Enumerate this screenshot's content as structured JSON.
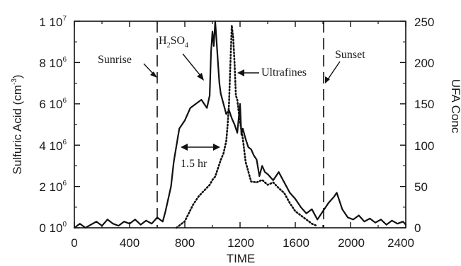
{
  "chart_data": {
    "type": "line",
    "title": "",
    "xlabel": "TIME",
    "ylabel_left": "Sulfuric Acid (cm",
    "ylabel_left_exp": "-3",
    "ylabel_left_close": ")",
    "ylabel_right": "UFA Conc",
    "xlim": [
      0,
      2400
    ],
    "ylim_left": [
      0,
      10000000
    ],
    "ylim_right": [
      0,
      250
    ],
    "grid": false,
    "x_ticks": [
      "0",
      "400",
      "800",
      "1200",
      "1600",
      "2000",
      "2400"
    ],
    "y_left_ticks": [
      {
        "mant": "0 10",
        "exp": "0",
        "value": 0
      },
      {
        "mant": "2 10",
        "exp": "6",
        "value": 2000000
      },
      {
        "mant": "4 10",
        "exp": "6",
        "value": 4000000
      },
      {
        "mant": "6 10",
        "exp": "6",
        "value": 6000000
      },
      {
        "mant": "8 10",
        "exp": "6",
        "value": 8000000
      },
      {
        "mant": "1 10",
        "exp": "7",
        "value": 10000000
      }
    ],
    "y_right_ticks": [
      "0",
      "50",
      "100",
      "150",
      "200",
      "250"
    ],
    "series": [
      {
        "axis": "left",
        "style": "solid",
        "x": [
          0,
          40,
          80,
          120,
          160,
          200,
          240,
          280,
          320,
          360,
          400,
          440,
          480,
          520,
          560,
          600,
          640,
          660,
          700,
          720,
          760,
          800,
          840,
          880,
          920,
          960,
          980,
          990,
          1000,
          1010,
          1020,
          1030,
          1040,
          1050,
          1060,
          1080,
          1100,
          1120,
          1140,
          1160,
          1180,
          1200,
          1210,
          1220,
          1240,
          1260,
          1280,
          1300,
          1320,
          1340,
          1360,
          1380,
          1400,
          1440,
          1480,
          1520,
          1560,
          1600,
          1640,
          1680,
          1720,
          1760,
          1800,
          1840,
          1880,
          1900,
          1940,
          1980,
          2020,
          2060,
          2100,
          2140,
          2180,
          2220,
          2260,
          2300,
          2340,
          2380,
          2400
        ],
        "y": [
          0,
          200000,
          0,
          150000,
          300000,
          100000,
          400000,
          200000,
          100000,
          300000,
          200000,
          400000,
          150000,
          350000,
          200000,
          500000,
          300000,
          800000,
          2000000,
          3200000,
          4800000,
          5200000,
          5800000,
          6000000,
          6200000,
          5800000,
          6400000,
          8500000,
          9500000,
          8800000,
          10000000,
          9000000,
          8000000,
          7000000,
          6500000,
          6000000,
          5500000,
          5700000,
          5300000,
          5000000,
          4600000,
          6000000,
          4500000,
          4800000,
          4300000,
          3900000,
          3800000,
          3500000,
          3300000,
          2500000,
          3000000,
          2700000,
          2600000,
          2300000,
          2700000,
          2200000,
          1700000,
          1400000,
          1000000,
          700000,
          900000,
          400000,
          800000,
          1200000,
          1500000,
          1700000,
          900000,
          500000,
          400000,
          600000,
          300000,
          450000,
          250000,
          400000,
          150000,
          350000,
          200000,
          300000,
          150000
        ]
      },
      {
        "axis": "right",
        "style": "dotted",
        "x": [
          740,
          800,
          860,
          900,
          940,
          980,
          1000,
          1020,
          1040,
          1060,
          1080,
          1100,
          1110,
          1120,
          1130,
          1140,
          1150,
          1160,
          1170,
          1180,
          1190,
          1200,
          1220,
          1240,
          1260,
          1280,
          1320,
          1360,
          1400,
          1440,
          1480,
          1520,
          1560,
          1600,
          1640,
          1680,
          1720,
          1760
        ],
        "y": [
          0,
          8,
          28,
          38,
          45,
          52,
          58,
          62,
          72,
          82,
          90,
          105,
          125,
          150,
          200,
          245,
          230,
          200,
          160,
          155,
          140,
          128,
          108,
          80,
          68,
          56,
          55,
          58,
          52,
          55,
          48,
          42,
          30,
          20,
          15,
          10,
          5,
          2
        ]
      }
    ],
    "annotations": [
      {
        "text": "Sunrise",
        "type": "vline",
        "x": 630
      },
      {
        "text": "Sunset",
        "type": "vline",
        "x": 1830
      },
      {
        "text_main": "H",
        "sub1": "2",
        "text_mid": "SO",
        "sub2": "4"
      },
      {
        "text": "Ultrafines"
      },
      {
        "text": "1.5 hr",
        "from": 780,
        "to": 1060
      }
    ]
  }
}
